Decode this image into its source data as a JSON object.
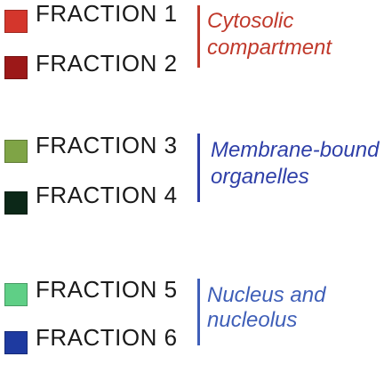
{
  "groups": [
    {
      "compartment": {
        "line1": "Cytosolic",
        "line2": "compartment",
        "color": "#c0392b"
      },
      "fractions": [
        {
          "label": "FRACTION 1",
          "color": "#d4362c"
        },
        {
          "label": "FRACTION 2",
          "color": "#9c1818"
        }
      ]
    },
    {
      "compartment": {
        "line1": "Membrane-bound",
        "line2": "organelles",
        "color": "#2e3fa8"
      },
      "fractions": [
        {
          "label": "FRACTION 3",
          "color": "#7fa446"
        },
        {
          "label": "FRACTION 4",
          "color": "#0c2818"
        }
      ]
    },
    {
      "compartment": {
        "line1": "Nucleus and",
        "line2": "nucleolus",
        "color": "#3f5fb8"
      },
      "fractions": [
        {
          "label": "FRACTION 5",
          "color": "#5fcf86"
        },
        {
          "label": "FRACTION 6",
          "color": "#1e3aa0"
        }
      ]
    }
  ]
}
